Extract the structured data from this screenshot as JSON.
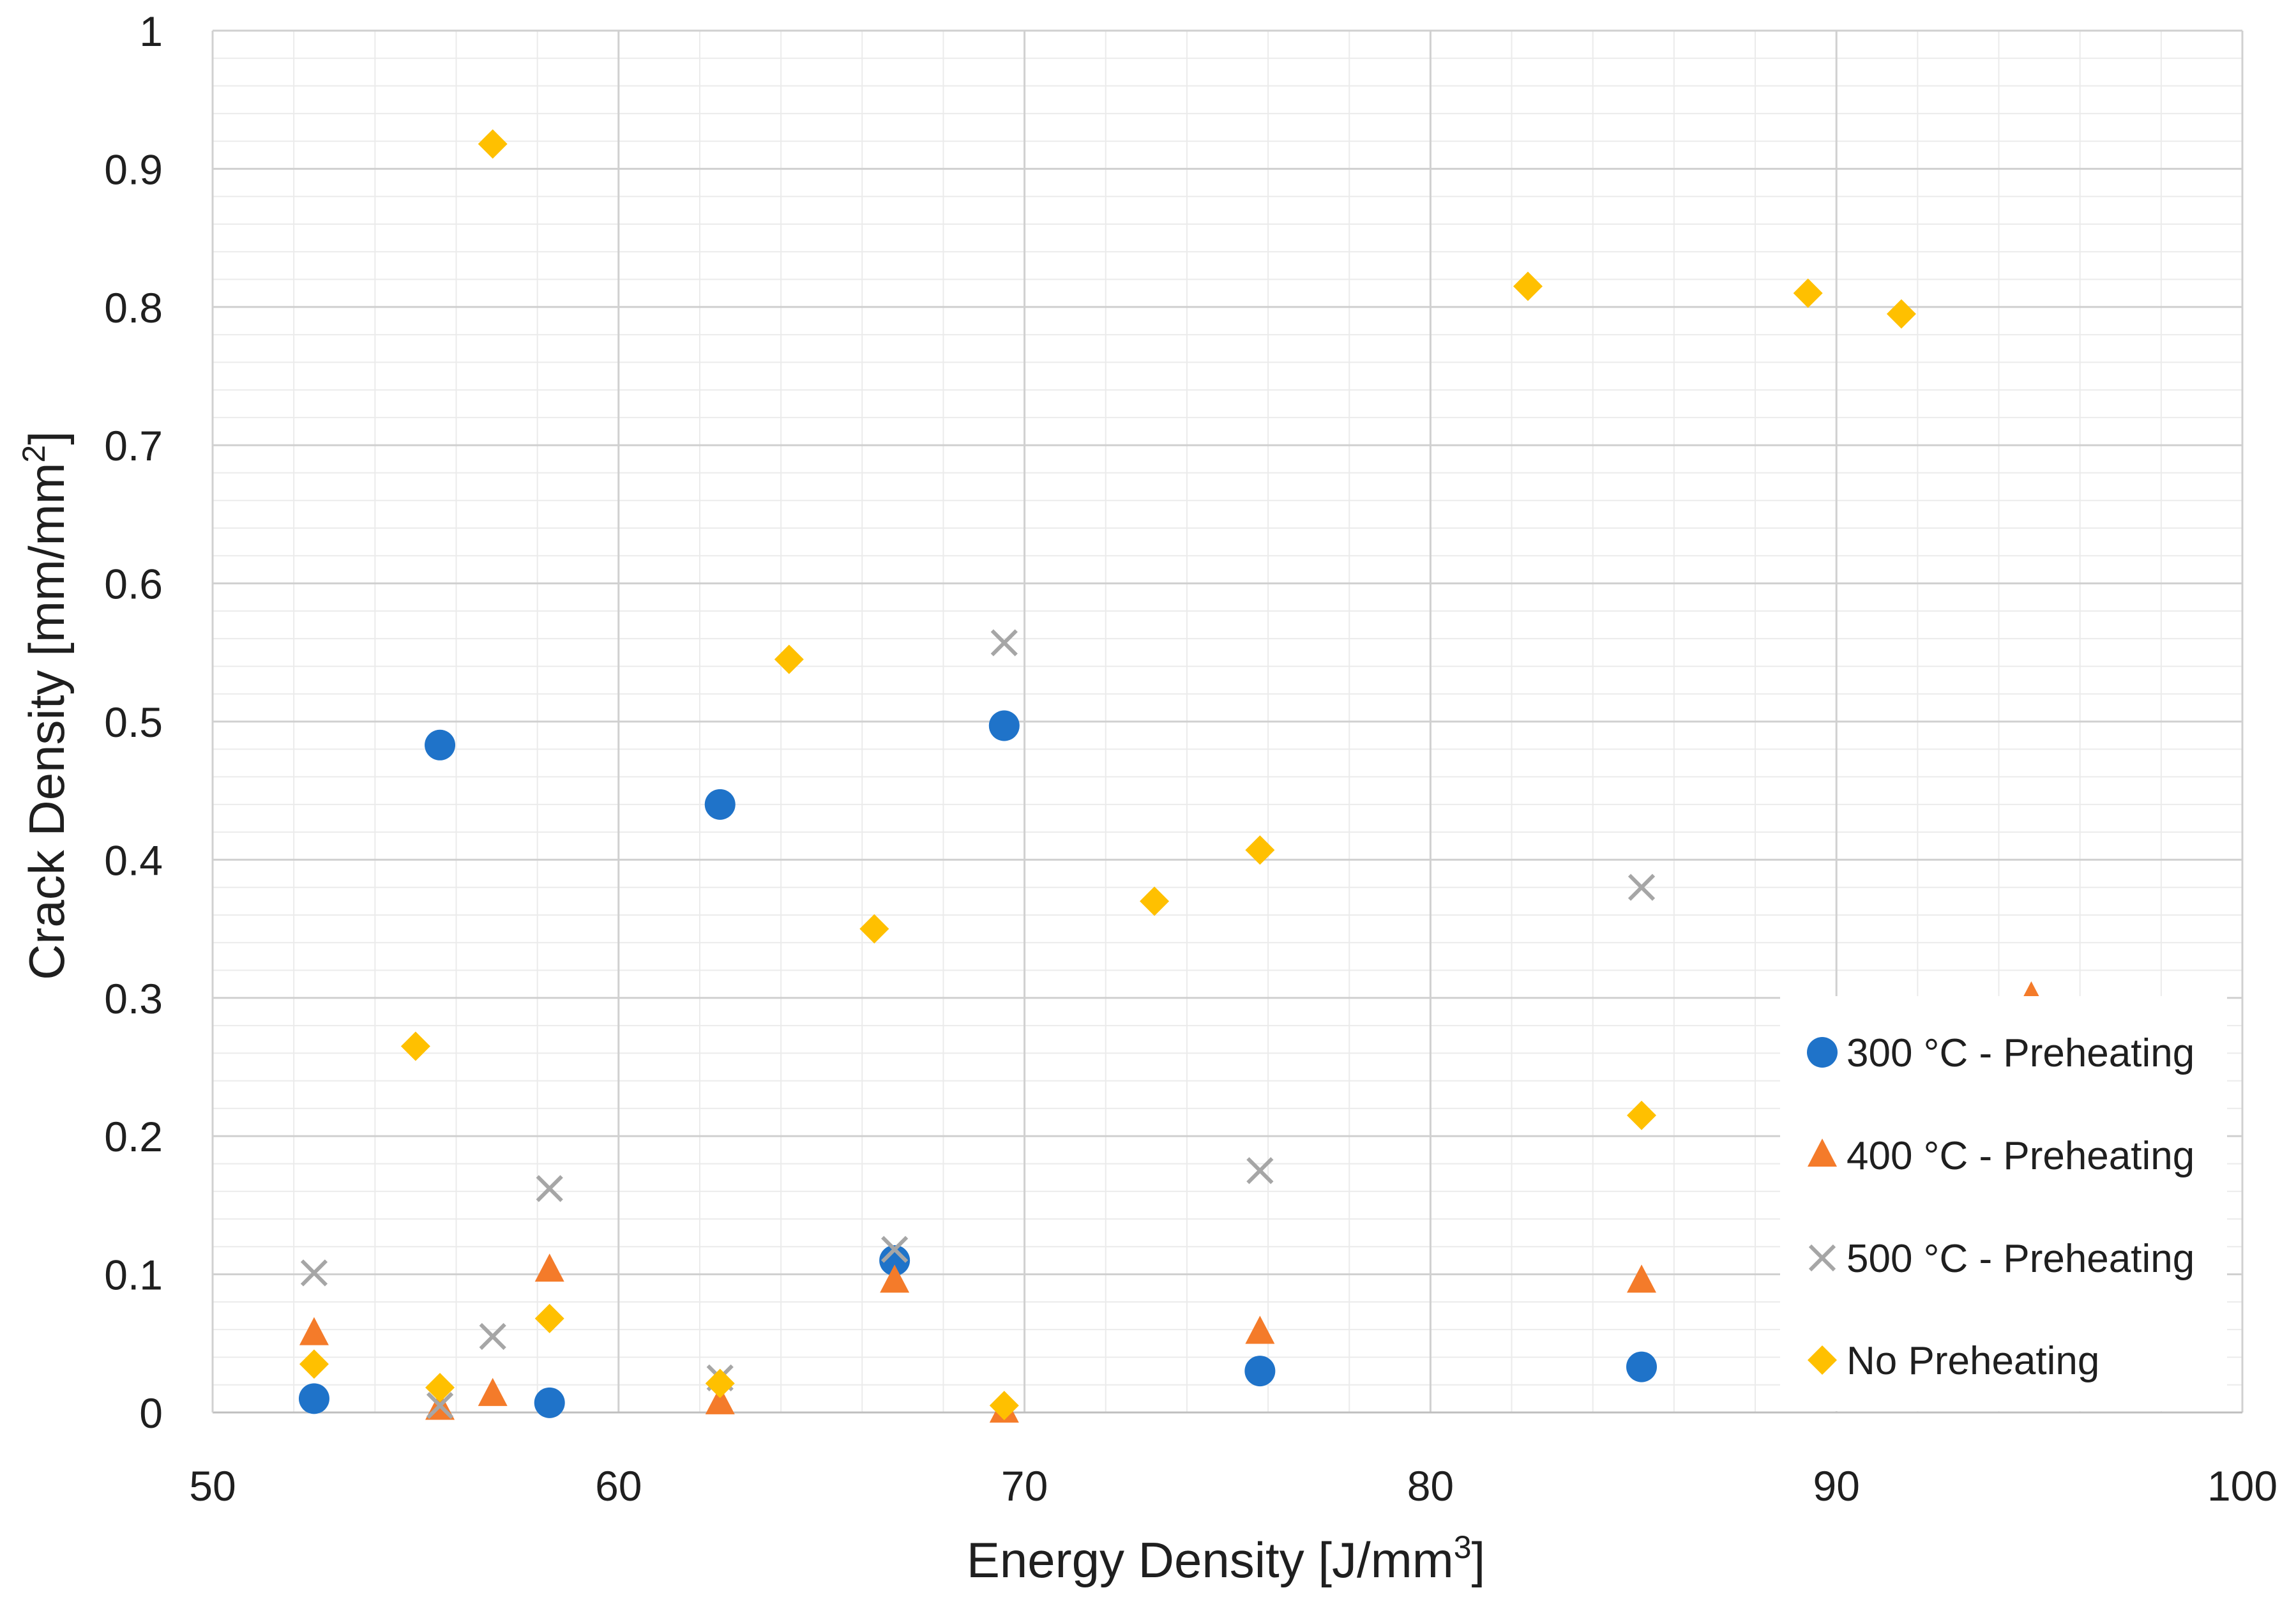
{
  "chart_data": {
    "type": "scatter",
    "title": "",
    "xlabel": "Energy Density [J/mm",
    "xlabel_sup": "3",
    "xlabel_end": "]",
    "ylabel": "Crack Density [mm/mm",
    "ylabel_sup": "2",
    "ylabel_end": "]",
    "xlim": [
      50,
      100
    ],
    "ylim": [
      0,
      1
    ],
    "x_major_ticks": [
      50,
      60,
      70,
      80,
      90,
      100
    ],
    "x_tick_labels": [
      "50",
      "60",
      "70",
      "80",
      "90",
      "100"
    ],
    "y_major_ticks": [
      0,
      0.1,
      0.2,
      0.3,
      0.4,
      0.5,
      0.6,
      0.7,
      0.8,
      0.9,
      1
    ],
    "y_tick_labels": [
      "0",
      "0.1",
      "0.2",
      "0.3",
      "0.4",
      "0.5",
      "0.6",
      "0.7",
      "0.8",
      "0.9",
      "1"
    ],
    "x_minor_step": 2,
    "y_minor_step": 0.02,
    "grid": true,
    "legend_position": "bottom-right",
    "series": [
      {
        "name": "300 °C - Preheating",
        "marker": "circle",
        "color": "#1f73c9",
        "points": [
          [
            52.5,
            0.01
          ],
          [
            55.6,
            0.483
          ],
          [
            58.3,
            0.007
          ],
          [
            62.5,
            0.44
          ],
          [
            66.8,
            0.11
          ],
          [
            69.5,
            0.497
          ],
          [
            75.8,
            0.03
          ],
          [
            85.2,
            0.033
          ]
        ]
      },
      {
        "name": "400 °C - Preheating",
        "marker": "triangle",
        "color": "#f47b2a",
        "points": [
          [
            52.5,
            0.057
          ],
          [
            55.6,
            0.003
          ],
          [
            56.9,
            0.013
          ],
          [
            58.3,
            0.103
          ],
          [
            62.5,
            0.007
          ],
          [
            66.8,
            0.095
          ],
          [
            69.5,
            0.001
          ],
          [
            75.8,
            0.058
          ],
          [
            85.2,
            0.095
          ],
          [
            94.8,
            0.3
          ]
        ]
      },
      {
        "name": "500 °C - Preheating",
        "marker": "cross",
        "color": "#a6a6a6",
        "points": [
          [
            52.5,
            0.101
          ],
          [
            55.6,
            0.005
          ],
          [
            56.9,
            0.055
          ],
          [
            58.3,
            0.162
          ],
          [
            62.5,
            0.025
          ],
          [
            66.8,
            0.118
          ],
          [
            69.5,
            0.557
          ],
          [
            75.8,
            0.175
          ],
          [
            85.2,
            0.38
          ]
        ]
      },
      {
        "name": "No Preheating",
        "marker": "diamond",
        "color": "#ffc000",
        "points": [
          [
            52.5,
            0.035
          ],
          [
            55.0,
            0.265
          ],
          [
            55.6,
            0.018
          ],
          [
            56.9,
            0.918
          ],
          [
            58.3,
            0.068
          ],
          [
            62.5,
            0.021
          ],
          [
            64.2,
            0.545
          ],
          [
            66.3,
            0.35
          ],
          [
            69.5,
            0.005
          ],
          [
            73.2,
            0.37
          ],
          [
            75.8,
            0.407
          ],
          [
            82.4,
            0.815
          ],
          [
            85.2,
            0.215
          ],
          [
            89.3,
            0.81
          ],
          [
            91.6,
            0.795
          ]
        ]
      }
    ]
  }
}
